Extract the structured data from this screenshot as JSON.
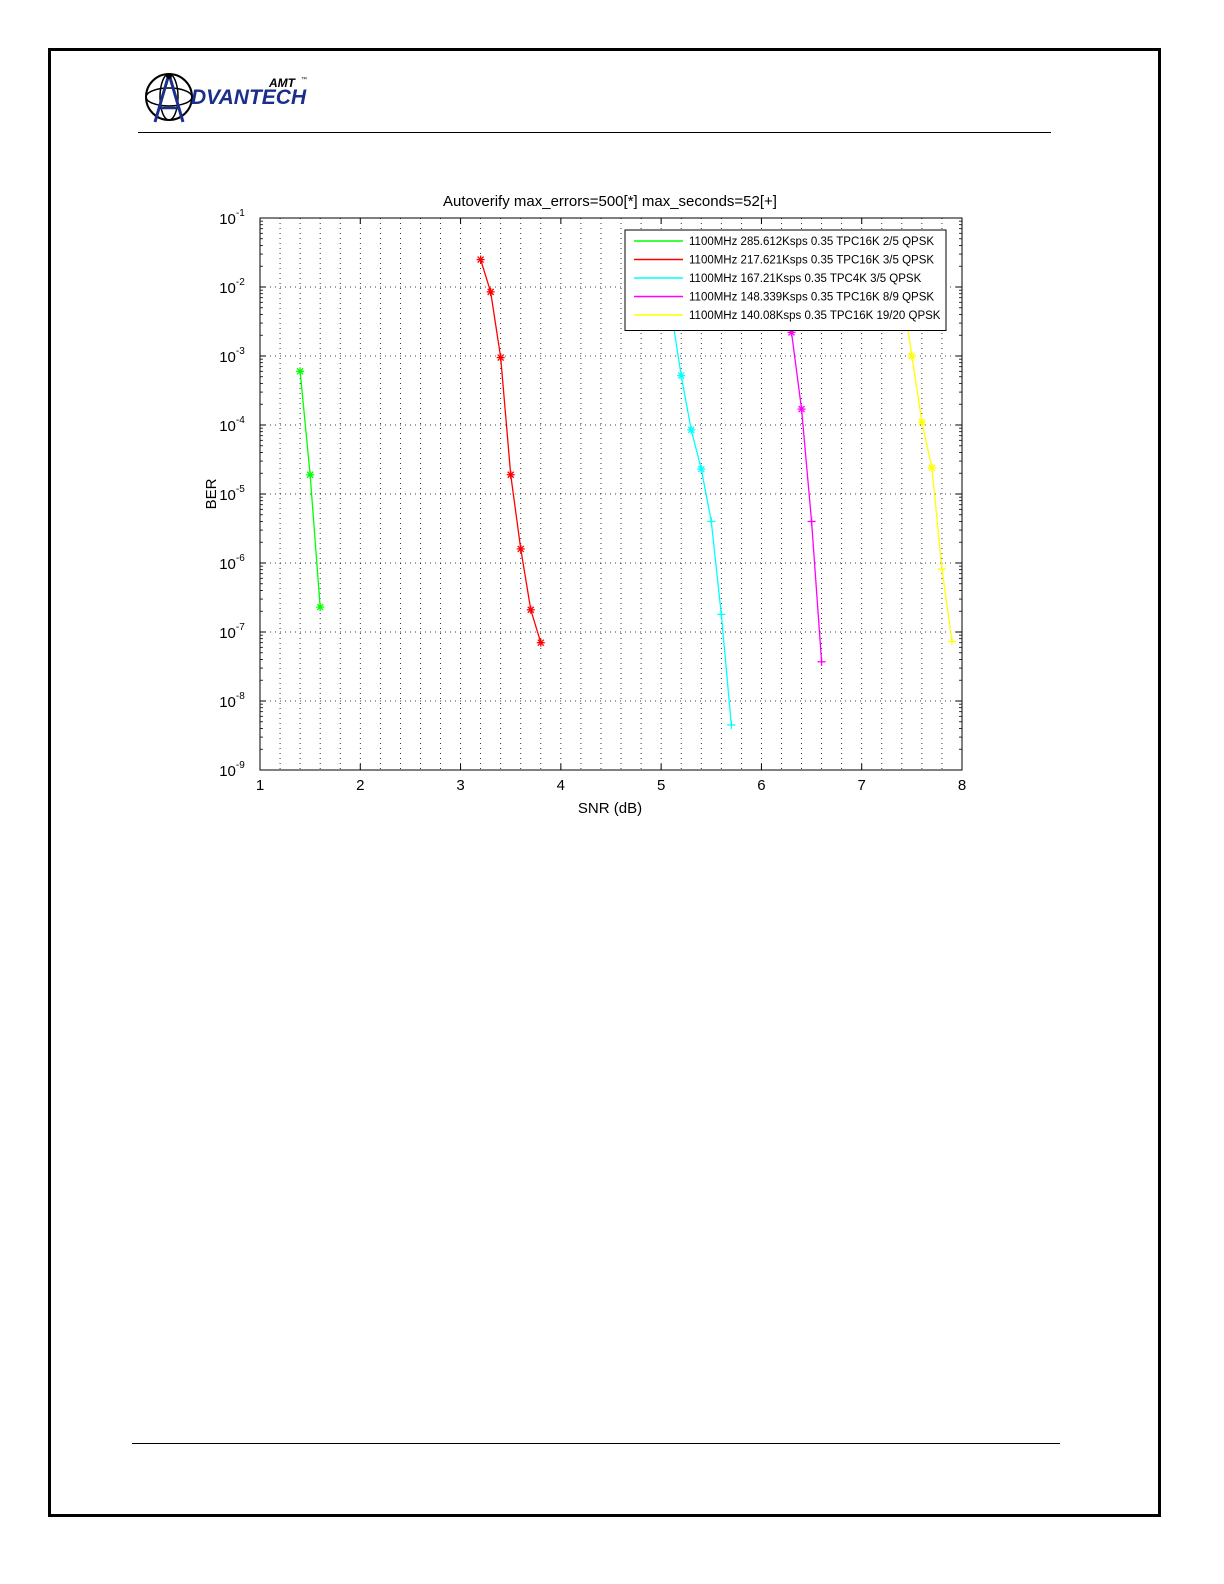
{
  "header": {
    "logo_text": "DVANTECH",
    "logo_sup": "AMT",
    "logo_tm": "™"
  },
  "colors": {
    "logo_blue": "#1a2f8c",
    "grid": "#000000"
  },
  "chart_data": {
    "type": "line",
    "title": "Autoverify max_errors=500[*] max_seconds=52[+]",
    "xlabel": "SNR (dB)",
    "ylabel": "BER",
    "xlim": [
      1,
      8
    ],
    "ylim": [
      1e-09,
      0.1
    ],
    "yscale": "log",
    "grid": true,
    "legend_position": "top-right",
    "x_ticks": [
      "1",
      "2",
      "3",
      "4",
      "5",
      "6",
      "7",
      "8"
    ],
    "y_ticks": [
      {
        "base": "10",
        "exp": "-1"
      },
      {
        "base": "10",
        "exp": "-2"
      },
      {
        "base": "10",
        "exp": "-3"
      },
      {
        "base": "10",
        "exp": "-4"
      },
      {
        "base": "10",
        "exp": "-5"
      },
      {
        "base": "10",
        "exp": "-6"
      },
      {
        "base": "10",
        "exp": "-7"
      },
      {
        "base": "10",
        "exp": "-8"
      },
      {
        "base": "10",
        "exp": "-9"
      }
    ],
    "series": [
      {
        "name": "1100MHz 285.612Ksps 0.35 TPC16K 2/5 QPSK",
        "color": "#00ff00",
        "x": [
          1.4,
          1.5,
          1.6
        ],
        "y": [
          0.0006,
          1.9e-05,
          2.3e-07
        ],
        "markers": [
          "*",
          "*",
          "*"
        ]
      },
      {
        "name": "1100MHz 217.621Ksps 0.35 TPC16K 3/5 QPSK",
        "color": "#ff0000",
        "x": [
          3.2,
          3.3,
          3.4,
          3.5,
          3.6,
          3.7,
          3.8
        ],
        "y": [
          0.025,
          0.0085,
          0.00095,
          1.9e-05,
          1.6e-06,
          2.1e-07,
          7e-08
        ],
        "markers": [
          "*",
          "*",
          "*",
          "*",
          "*",
          "*",
          "*"
        ]
      },
      {
        "name": "1100MHz 167.21Ksps 0.35 TPC4K 3/5 QPSK",
        "color": "#00ffff",
        "x": [
          5.1,
          5.2,
          5.3,
          5.4,
          5.5,
          5.6,
          5.7
        ],
        "y": [
          0.0045,
          0.00052,
          8.5e-05,
          2.3e-05,
          4e-06,
          1.8e-07,
          4.5e-09
        ],
        "markers": [
          "+",
          "*",
          "*",
          "*",
          "+",
          "+",
          "+"
        ]
      },
      {
        "name": "1100MHz 148.339Ksps 0.35 TPC16K 8/9 QPSK",
        "color": "#ff00ff",
        "x": [
          6.3,
          6.4,
          6.5,
          6.6
        ],
        "y": [
          0.0022,
          0.00017,
          4e-06,
          3.7e-08
        ],
        "markers": [
          "*",
          "*",
          "+",
          "+"
        ]
      },
      {
        "name": "1100MHz 140.08Ksps 0.35 TPC16K 19/20 QPSK",
        "color": "#ffff00",
        "x": [
          7.45,
          7.5,
          7.6,
          7.7,
          7.8,
          7.9
        ],
        "y": [
          0.003,
          0.001,
          0.00011,
          2.4e-05,
          8.2e-07,
          7.3e-08
        ],
        "markers": [
          "",
          "*",
          "*",
          "*",
          "+",
          "+"
        ]
      }
    ]
  }
}
